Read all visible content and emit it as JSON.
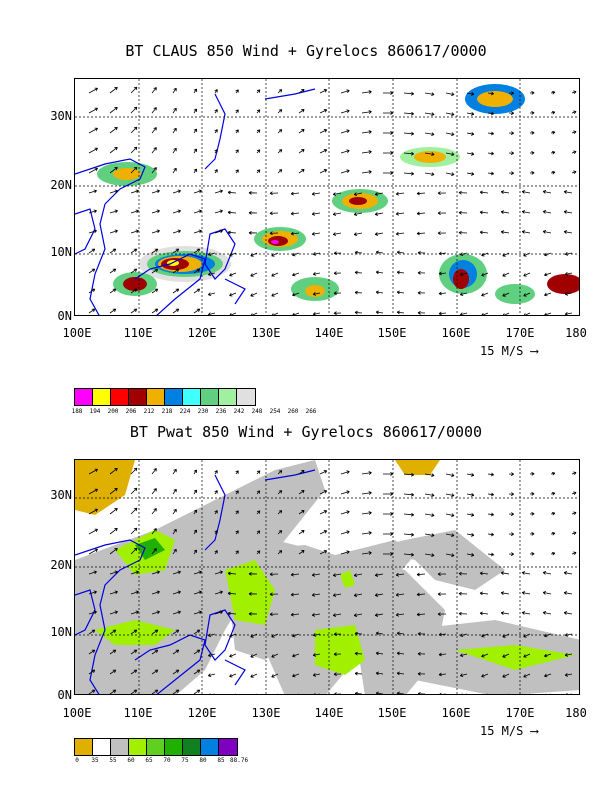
{
  "panel1": {
    "title": "BT CLAUS 850 Wind + Gyrelocs 860617/0000",
    "y_labels": [
      "30N",
      "20N",
      "10N",
      "0N"
    ],
    "x_labels": [
      "100E",
      "110E",
      "120E",
      "130E",
      "140E",
      "150E",
      "160E",
      "170E",
      "180"
    ],
    "vector_ref": "15 M/S",
    "legend_colors": [
      "#ff00ff",
      "#ffff00",
      "#ff0000",
      "#a00000",
      "#f0b000",
      "#0080e0",
      "#40ffff",
      "#60d080",
      "#a0f0a0",
      "#e0e0e0"
    ],
    "legend_labels": [
      "188",
      "194",
      "200",
      "206",
      "212",
      "218",
      "224",
      "230",
      "236",
      "242",
      "248",
      "254",
      "260",
      "266"
    ]
  },
  "panel2": {
    "title": "BT Pwat 850 Wind + Gyrelocs 860617/0000",
    "y_labels": [
      "30N",
      "20N",
      "10N",
      "0N"
    ],
    "x_labels": [
      "100E",
      "110E",
      "120E",
      "130E",
      "140E",
      "150E",
      "160E",
      "170E",
      "180"
    ],
    "vector_ref": "15 M/S",
    "legend_colors": [
      "#e0b000",
      "#ffffff",
      "#c0c0c0",
      "#a0f000",
      "#60d020",
      "#20b000",
      "#108020",
      "#0080e0",
      "#8000c0"
    ],
    "legend_labels": [
      "0",
      "35",
      "55",
      "60",
      "65",
      "70",
      "75",
      "80",
      "85",
      "88.76"
    ]
  }
}
